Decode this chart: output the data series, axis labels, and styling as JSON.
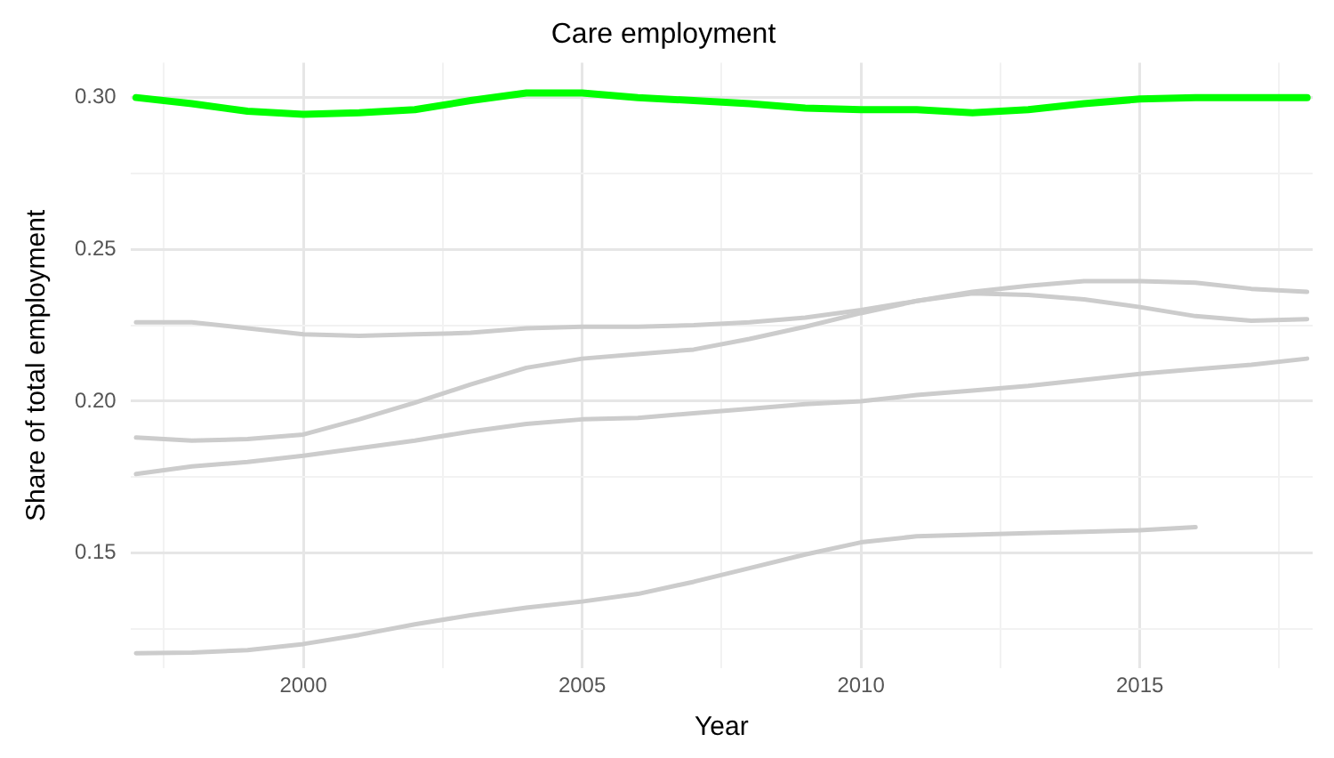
{
  "chart_data": {
    "type": "line",
    "title": "Care employment",
    "xlabel": "Year",
    "ylabel": "Share of total employment",
    "x": [
      1997,
      1998,
      1999,
      2000,
      2001,
      2002,
      2003,
      2004,
      2005,
      2006,
      2007,
      2008,
      2009,
      2010,
      2011,
      2012,
      2013,
      2014,
      2015,
      2016,
      2017,
      2018
    ],
    "series": [
      {
        "color": "#00ff00",
        "values": [
          0.3,
          0.298,
          0.2955,
          0.2945,
          0.295,
          0.296,
          0.299,
          0.3015,
          0.3015,
          0.3,
          0.299,
          0.298,
          0.2965,
          0.296,
          0.296,
          0.295,
          0.296,
          0.298,
          0.2995,
          0.3,
          0.3,
          0.3
        ]
      },
      {
        "color": "#cccccc",
        "values": [
          0.226,
          0.226,
          0.224,
          0.222,
          0.2215,
          0.222,
          0.2225,
          0.224,
          0.2245,
          0.2245,
          0.225,
          0.226,
          0.2275,
          0.23,
          0.233,
          0.2355,
          0.235,
          0.2335,
          0.231,
          0.228,
          0.2265,
          0.227
        ]
      },
      {
        "color": "#cccccc",
        "values": [
          0.188,
          0.187,
          0.1875,
          0.189,
          0.194,
          0.1995,
          0.2055,
          0.211,
          0.214,
          0.2155,
          0.217,
          0.2205,
          0.2245,
          0.229,
          0.233,
          0.236,
          0.238,
          0.2395,
          0.2395,
          0.239,
          0.237,
          0.236
        ]
      },
      {
        "color": "#cccccc",
        "values": [
          0.176,
          0.1785,
          0.18,
          0.182,
          0.1845,
          0.187,
          0.19,
          0.1925,
          0.194,
          0.1945,
          0.196,
          0.1975,
          0.199,
          0.2,
          0.202,
          0.2035,
          0.205,
          0.207,
          0.209,
          0.2105,
          0.212,
          0.214
        ]
      },
      {
        "color": "#cccccc",
        "values": [
          0.117,
          0.1172,
          0.118,
          0.12,
          0.123,
          0.1265,
          0.1295,
          0.132,
          0.134,
          0.1365,
          0.1405,
          0.145,
          0.1495,
          0.1535,
          0.1555,
          0.156,
          0.1565,
          0.157,
          0.1575,
          0.1585,
          null,
          null
        ]
      }
    ],
    "xlim": [
      1996.9,
      2018.1
    ],
    "ylim": [
      0.112,
      0.3115
    ],
    "xticks": [
      {
        "value": 1997.5,
        "label": null
      },
      2000,
      {
        "value": 2002.5,
        "label": null
      },
      2005,
      {
        "value": 2007.5,
        "label": null
      },
      2010,
      {
        "value": 2012.5,
        "label": null
      },
      2015,
      {
        "value": 2017.5,
        "label": null
      }
    ],
    "yticks": [
      {
        "value": 0.125,
        "label": null
      },
      {
        "value": 0.15,
        "label": "0.15"
      },
      {
        "value": 0.175,
        "label": null
      },
      {
        "value": 0.2,
        "label": "0.20"
      },
      {
        "value": 0.225,
        "label": null
      },
      0.25,
      {
        "value": 0.275,
        "label": null
      },
      {
        "value": 0.3,
        "label": "0.30"
      }
    ],
    "grid": true,
    "legend": false,
    "marker": "none",
    "line_style": "solid"
  }
}
